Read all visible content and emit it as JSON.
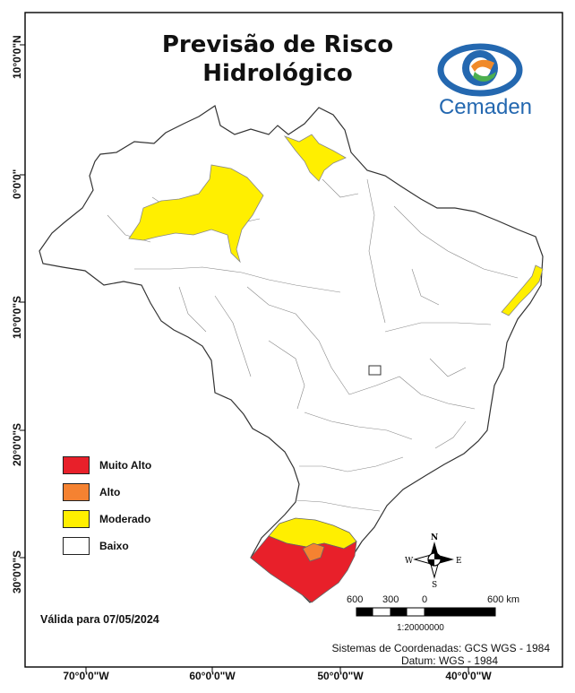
{
  "title_line1": "Previsão de Risco",
  "title_line2": "Hidrológico",
  "brand": {
    "name": "Cemaden",
    "color_blue": "#2468b0",
    "color_orange": "#f08a2a",
    "color_green": "#4caf50"
  },
  "legend": [
    {
      "label": "Muito Alto",
      "color": "#e8202a"
    },
    {
      "label": "Alto",
      "color": "#f58231"
    },
    {
      "label": "Moderado",
      "color": "#ffef00"
    },
    {
      "label": "Baixo",
      "color": "#ffffff"
    }
  ],
  "valid_text": "Válida para 07/05/2024",
  "coord_system": "Sistemas de Coordenadas: GCS WGS - 1984",
  "datum": "Datum: WGS - 1984",
  "scale": {
    "labels": [
      "600",
      "300",
      "0",
      "600 km"
    ],
    "ratio": "1:20000000"
  },
  "north_arrow": {
    "n": "N",
    "s": "S",
    "e": "E",
    "w": "W"
  },
  "ticks_x": [
    "70°0'0\"W",
    "60°0'0\"W",
    "50°0'0\"W",
    "40°0'0\"W"
  ],
  "ticks_y": [
    "10°0'0\"N",
    "0°0'0\"",
    "10°0'0\"S",
    "20°0'0\"S",
    "30°0'0\"S"
  ]
}
